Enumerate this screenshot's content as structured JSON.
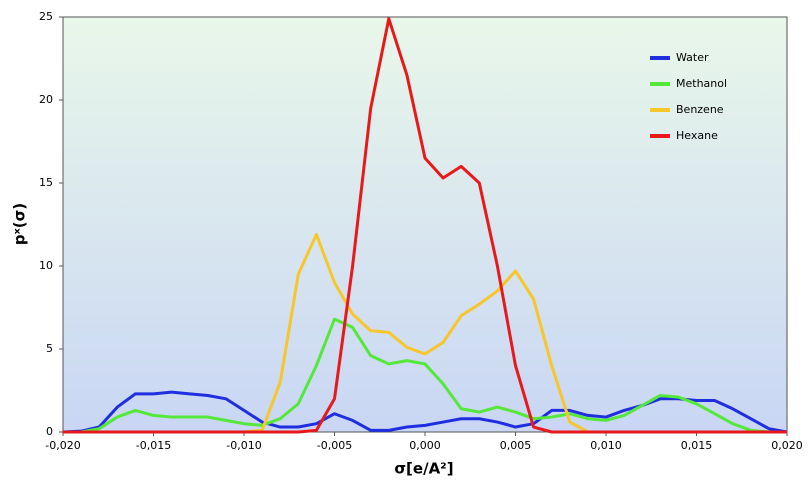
{
  "chart_data": {
    "type": "line",
    "xlabel": "σ[e/A²]",
    "ylabel": "pˣ(σ)",
    "x": [
      -0.02,
      -0.019,
      -0.018,
      -0.017,
      -0.016,
      -0.015,
      -0.014,
      -0.013,
      -0.012,
      -0.011,
      -0.01,
      -0.009,
      -0.008,
      -0.007,
      -0.006,
      -0.005,
      -0.004,
      -0.003,
      -0.002,
      -0.001,
      0.0,
      0.001,
      0.002,
      0.003,
      0.004,
      0.005,
      0.006,
      0.007,
      0.008,
      0.009,
      0.01,
      0.011,
      0.012,
      0.013,
      0.014,
      0.015,
      0.016,
      0.017,
      0.018,
      0.019,
      0.02
    ],
    "series": [
      {
        "name": "Water",
        "color": "#1f2fe0",
        "values": [
          0,
          0.05,
          0.3,
          1.5,
          2.3,
          2.3,
          2.4,
          2.3,
          2.2,
          2.0,
          1.3,
          0.6,
          0.3,
          0.3,
          0.5,
          1.1,
          0.7,
          0.1,
          0.1,
          0.3,
          0.4,
          0.6,
          0.8,
          0.8,
          0.6,
          0.3,
          0.5,
          1.3,
          1.3,
          1.0,
          0.9,
          1.3,
          1.6,
          2.0,
          2.0,
          1.9,
          1.9,
          1.4,
          0.8,
          0.2,
          0
        ]
      },
      {
        "name": "Methanol",
        "color": "#55e83a",
        "values": [
          0,
          0,
          0.2,
          0.9,
          1.3,
          1.0,
          0.9,
          0.9,
          0.9,
          0.7,
          0.5,
          0.4,
          0.8,
          1.7,
          4.0,
          6.8,
          6.3,
          4.6,
          4.1,
          4.3,
          4.1,
          2.9,
          1.4,
          1.2,
          1.5,
          1.2,
          0.8,
          0.9,
          1.1,
          0.8,
          0.7,
          1.0,
          1.6,
          2.2,
          2.1,
          1.7,
          1.1,
          0.5,
          0.1,
          0,
          0
        ]
      },
      {
        "name": "Benzene",
        "color": "#f7c62a",
        "values": [
          0,
          0,
          0,
          0,
          0,
          0,
          0,
          0,
          0,
          0,
          0,
          0.1,
          3.0,
          9.5,
          11.9,
          9.0,
          7.1,
          6.1,
          6.0,
          5.1,
          4.7,
          5.4,
          7.0,
          7.7,
          8.5,
          9.7,
          8.0,
          4.0,
          0.6,
          0,
          0,
          0,
          0,
          0,
          0,
          0,
          0,
          0,
          0,
          0,
          0
        ]
      },
      {
        "name": "Hexane",
        "color": "#e8191b",
        "values": [
          0,
          0,
          0,
          0,
          0,
          0,
          0,
          0,
          0,
          0,
          0,
          0,
          0,
          0,
          0.1,
          2.0,
          10.0,
          19.5,
          24.9,
          21.5,
          16.5,
          15.3,
          16.0,
          15.0,
          10.0,
          4.0,
          0.3,
          0,
          0,
          0,
          0,
          0,
          0,
          0,
          0,
          0,
          0,
          0,
          0,
          0,
          0
        ]
      }
    ],
    "xlim": [
      -0.02,
      0.02
    ],
    "xticks": [
      {
        "value": -0.02,
        "label": "-0,020"
      },
      {
        "value": -0.015,
        "label": "-0,015"
      },
      {
        "value": -0.01,
        "label": "-0,010"
      },
      {
        "value": -0.005,
        "label": "-0,005"
      },
      {
        "value": 0.0,
        "label": "0,000"
      },
      {
        "value": 0.005,
        "label": "0,005"
      },
      {
        "value": 0.01,
        "label": "0,010"
      },
      {
        "value": 0.015,
        "label": "0,015"
      },
      {
        "value": 0.02,
        "label": "0,020"
      }
    ],
    "ylim": [
      0,
      25
    ],
    "yticks": [
      0,
      5,
      10,
      15,
      20,
      25
    ],
    "legend": "upper right"
  }
}
